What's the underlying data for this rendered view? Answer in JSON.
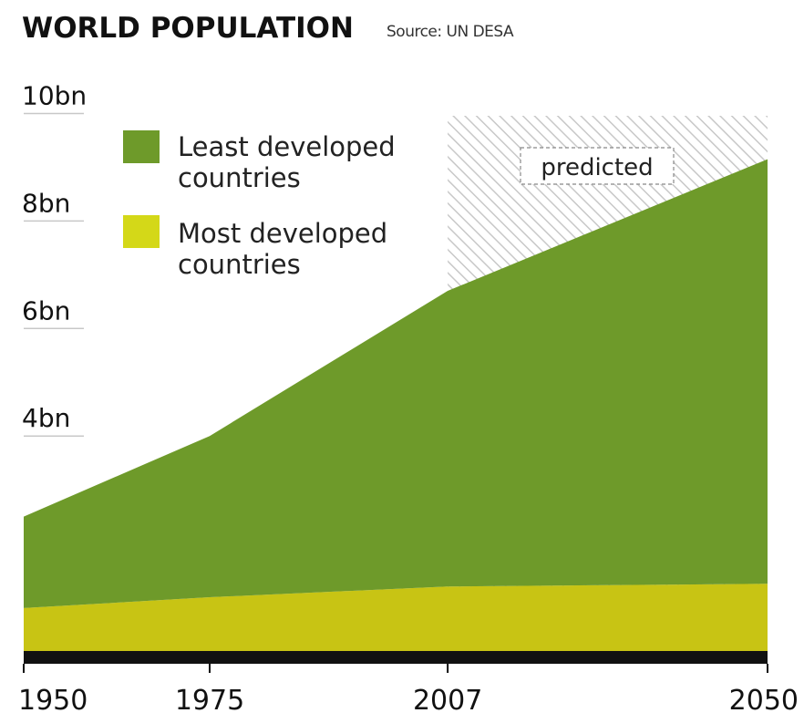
{
  "chart_data": {
    "type": "area",
    "title": "WORLD POPULATION",
    "source": "Source: UN DESA",
    "x": [
      1950,
      1975,
      2007,
      2050
    ],
    "x_tick_labels": [
      "1950",
      "1975",
      "2007",
      "2050"
    ],
    "y_ticks": [
      4,
      6,
      8,
      10
    ],
    "y_tick_labels": [
      "4bn",
      "6bn",
      "8bn",
      "10bn"
    ],
    "ylim": [
      0,
      10.5
    ],
    "stacked": true,
    "series": [
      {
        "name": "Most developed countries",
        "values": [
          0.8,
          1.0,
          1.2,
          1.25
        ],
        "color": "#c8c414"
      },
      {
        "name": "Least developed countries",
        "values": [
          1.7,
          3.0,
          5.5,
          7.9
        ],
        "color": "#6e9a2a"
      }
    ],
    "legend": {
      "position": "top-left",
      "items": [
        {
          "line1": "Least developed",
          "line2": "countries",
          "color": "#6e9a2a"
        },
        {
          "line1": "Most developed",
          "line2": "countries",
          "color": "#d4d818"
        }
      ]
    },
    "annotations": [
      {
        "text": "predicted",
        "x_start": 2007,
        "x_end": 2050
      }
    ],
    "grid": false
  }
}
